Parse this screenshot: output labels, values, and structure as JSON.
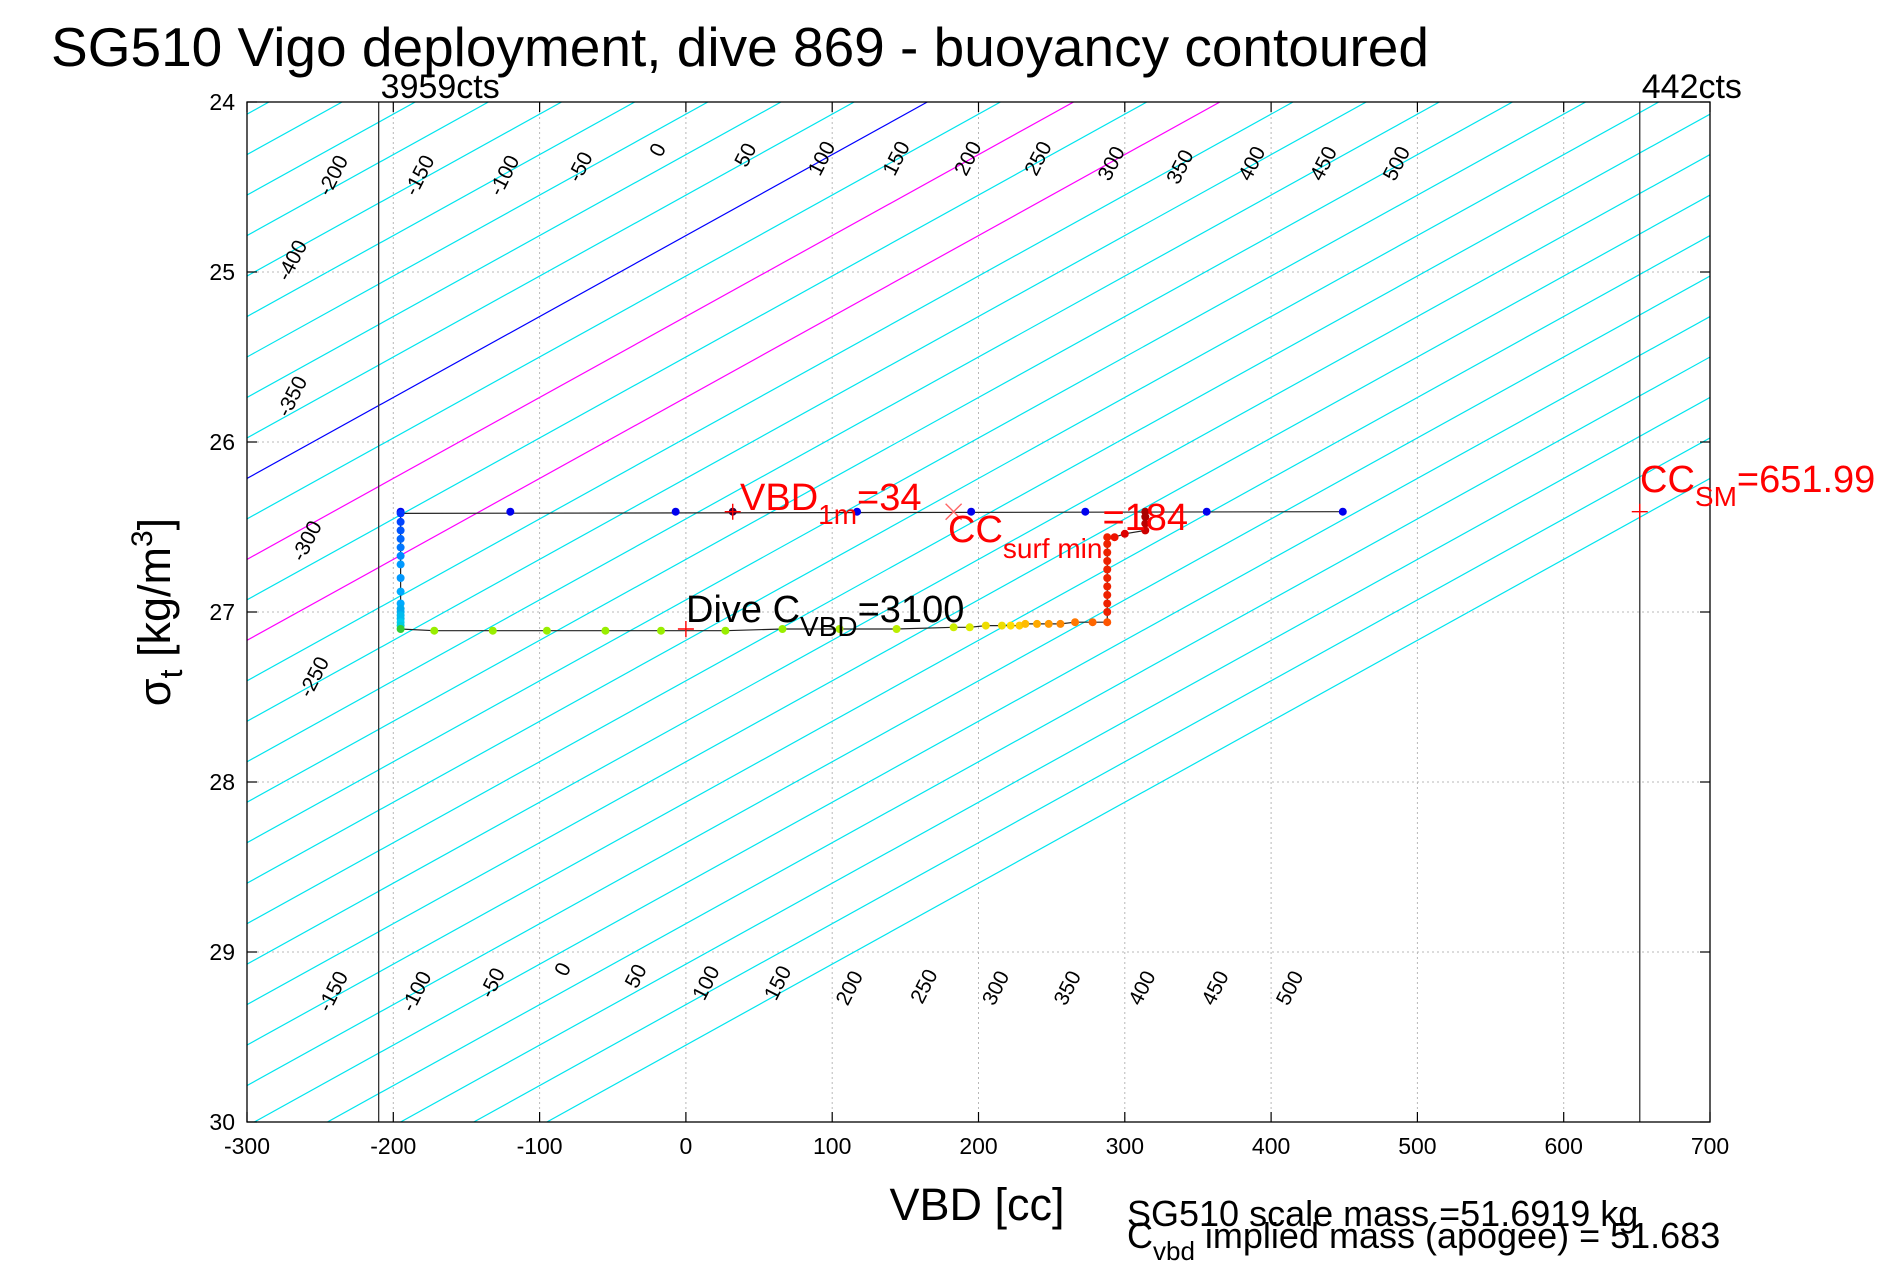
{
  "chart_data": {
    "type": "scatter",
    "title": "SG510 Vigo deployment, dive 869 - buoyancy contoured",
    "xlabel": "VBD [cc]",
    "ylabel": {
      "main": "σ",
      "sub": "t",
      "rest": " [kg/m",
      "sup": "3",
      "close": "]"
    },
    "xlim": [
      -300,
      700
    ],
    "ylim": [
      24,
      30
    ],
    "y_reversed": true,
    "grid": true,
    "x_ticks": [
      -300,
      -200,
      -100,
      0,
      100,
      200,
      300,
      400,
      500,
      600,
      700
    ],
    "x_tick_labels": [
      "-300",
      "-200",
      "-100",
      "0",
      "100",
      "200",
      "300",
      "400",
      "500",
      "600",
      "700"
    ],
    "y_ticks": [
      24,
      25,
      26,
      27,
      28,
      29,
      30
    ],
    "y_tick_labels": [
      "24",
      "25",
      "26",
      "27",
      "28",
      "29",
      "30"
    ],
    "contours": {
      "description_values": [
        -400,
        -350,
        -300,
        -250,
        -200,
        -150,
        -100,
        -50,
        0,
        50,
        100,
        150,
        200,
        250,
        300,
        350,
        400,
        450,
        500
      ],
      "slope_cc_per_sigma": 210,
      "zero_line_x_at_sigma_24": 165,
      "extra_values": [
        -650,
        -600,
        -550,
        -500,
        -450,
        550,
        600,
        650,
        700,
        750,
        800,
        850,
        900,
        950,
        1000
      ],
      "cyan_color": "#00e5ee",
      "zero_color": "#0000ff",
      "magenta_color": "#ff00ff",
      "magenta_values": [
        100,
        200
      ],
      "top_labels": [
        {
          "text": "-400",
          "x": -265,
          "y": 24.95
        },
        {
          "text": "-350",
          "x": -265,
          "y": 25.75
        },
        {
          "text": "-300",
          "x": -255,
          "y": 26.6
        },
        {
          "text": "-250",
          "x": -250,
          "y": 27.4
        },
        {
          "text": "-200",
          "x": -237,
          "y": 24.45
        },
        {
          "text": "-150",
          "x": -178,
          "y": 24.45
        },
        {
          "text": "-100",
          "x": -120,
          "y": 24.45
        },
        {
          "text": "-50",
          "x": -68,
          "y": 24.4
        },
        {
          "text": "0",
          "x": -15,
          "y": 24.3
        },
        {
          "text": "50",
          "x": 45,
          "y": 24.33
        },
        {
          "text": "100",
          "x": 97,
          "y": 24.35
        },
        {
          "text": "150",
          "x": 148,
          "y": 24.35
        },
        {
          "text": "200",
          "x": 197,
          "y": 24.35
        },
        {
          "text": "250",
          "x": 245,
          "y": 24.35
        },
        {
          "text": "300",
          "x": 295,
          "y": 24.38
        },
        {
          "text": "350",
          "x": 342,
          "y": 24.4
        },
        {
          "text": "400",
          "x": 391,
          "y": 24.38
        },
        {
          "text": "450",
          "x": 440,
          "y": 24.38
        },
        {
          "text": "500",
          "x": 490,
          "y": 24.38
        }
      ],
      "bottom_labels": [
        {
          "text": "-150",
          "x": -237,
          "y": 29.25
        },
        {
          "text": "-100",
          "x": -180,
          "y": 29.25
        },
        {
          "text": "-50",
          "x": -128,
          "y": 29.2
        },
        {
          "text": "0",
          "x": -80,
          "y": 29.12
        },
        {
          "text": "50",
          "x": -30,
          "y": 29.16
        },
        {
          "text": "100",
          "x": 18,
          "y": 29.2
        },
        {
          "text": "150",
          "x": 67,
          "y": 29.2
        },
        {
          "text": "200",
          "x": 116,
          "y": 29.23
        },
        {
          "text": "250",
          "x": 167,
          "y": 29.22
        },
        {
          "text": "300",
          "x": 216,
          "y": 29.23
        },
        {
          "text": "350",
          "x": 265,
          "y": 29.23
        },
        {
          "text": "400",
          "x": 316,
          "y": 29.23
        },
        {
          "text": "450",
          "x": 366,
          "y": 29.23
        },
        {
          "text": "500",
          "x": 417,
          "y": 29.23
        }
      ]
    },
    "vertical_lines": [
      {
        "x": -210,
        "label": "3959cts"
      },
      {
        "x": 651.99,
        "label": "442cts"
      }
    ],
    "dive_path": {
      "upper_sigma": 26.41,
      "upper_points_x": [
        -195,
        -120,
        -7,
        117,
        195,
        273,
        356,
        449
      ],
      "upper_sigma_at_xmin": 26.42,
      "lower_sigma": 27.1,
      "lower_points": [
        {
          "x": -195,
          "y": 27.1,
          "color": "#33cc33"
        },
        {
          "x": -172,
          "y": 27.11,
          "color": "#99ee00"
        },
        {
          "x": -132,
          "y": 27.11,
          "color": "#99ee00"
        },
        {
          "x": -95,
          "y": 27.11,
          "color": "#99ee00"
        },
        {
          "x": -55,
          "y": 27.11,
          "color": "#99ee00"
        },
        {
          "x": -17,
          "y": 27.11,
          "color": "#99ee00"
        },
        {
          "x": 27,
          "y": 27.11,
          "color": "#99ee00"
        },
        {
          "x": 66,
          "y": 27.1,
          "color": "#99ee00"
        },
        {
          "x": 105,
          "y": 27.1,
          "color": "#aaee00"
        },
        {
          "x": 144,
          "y": 27.1,
          "color": "#bbee00"
        },
        {
          "x": 183,
          "y": 27.09,
          "color": "#ccee00"
        },
        {
          "x": 194,
          "y": 27.09,
          "color": "#ddee00"
        },
        {
          "x": 205,
          "y": 27.08,
          "color": "#eedd00"
        },
        {
          "x": 216,
          "y": 27.08,
          "color": "#eedd00"
        },
        {
          "x": 222,
          "y": 27.08,
          "color": "#ffdd00"
        },
        {
          "x": 228,
          "y": 27.08,
          "color": "#ffcc00"
        },
        {
          "x": 232,
          "y": 27.07,
          "color": "#ffbb00"
        },
        {
          "x": 240,
          "y": 27.07,
          "color": "#ffaa00"
        },
        {
          "x": 248,
          "y": 27.07,
          "color": "#ff9900"
        },
        {
          "x": 256,
          "y": 27.07,
          "color": "#ff8800"
        },
        {
          "x": 266,
          "y": 27.06,
          "color": "#ff7700"
        },
        {
          "x": 278,
          "y": 27.06,
          "color": "#ff6600"
        },
        {
          "x": 288,
          "y": 27.06,
          "color": "#ff5500"
        }
      ],
      "right_column_x": 288,
      "right_column_sigma": [
        27.0,
        26.95,
        26.9,
        26.85,
        26.8,
        26.75,
        26.7,
        26.65,
        26.6,
        26.56
      ],
      "right_column_color": "#ee2200",
      "top_right_points": [
        {
          "x": 293,
          "y": 26.56,
          "color": "#ee1100"
        },
        {
          "x": 300,
          "y": 26.54,
          "color": "#dd0000"
        },
        {
          "x": 314,
          "y": 26.52,
          "color": "#cc0000"
        },
        {
          "x": 314,
          "y": 26.48,
          "color": "#bb0000"
        },
        {
          "x": 314,
          "y": 26.44,
          "color": "#aa0000"
        },
        {
          "x": 314,
          "y": 26.41,
          "color": "#aa0000"
        }
      ],
      "left_column_x": -195,
      "left_column_sigma": [
        26.42,
        26.47,
        26.52,
        26.57,
        26.62,
        26.67,
        26.72,
        26.8,
        26.88,
        26.95,
        26.98,
        27.0,
        27.02,
        27.04,
        27.06,
        27.08
      ],
      "left_column_colors": [
        "#0033ff",
        "#0044ff",
        "#0055ff",
        "#0066ff",
        "#0077ff",
        "#0088ff",
        "#0099ff",
        "#0099ff",
        "#00aaff",
        "#00aaff",
        "#00aaee",
        "#00aaee",
        "#00bbee",
        "#00bbee",
        "#00ccee",
        "#00ccdd"
      ],
      "upper_point_color": "#0000ee",
      "black_dot": {
        "x": 32,
        "y": 26.41
      }
    },
    "markers": [
      {
        "x": 32,
        "y": 26.41,
        "symbol": "+",
        "color": "#ff0000"
      },
      {
        "x": 183,
        "y": 26.41,
        "symbol": "x",
        "color": "#ff6666"
      },
      {
        "x": 651.99,
        "y": 26.41,
        "symbol": "+",
        "color": "#ff0000"
      },
      {
        "x": 0,
        "y": 27.1,
        "symbol": "+",
        "color": "#ff0000"
      }
    ],
    "annotations": {
      "vbd1m": {
        "main": "VBD",
        "sub": "1m",
        "rest": "=34"
      },
      "ccsurf": {
        "main": "CC",
        "sub": "surf min",
        "rest": "=184"
      },
      "ccsm": {
        "main": "CC",
        "sub": "SM",
        "rest": "=651.99"
      },
      "divec": {
        "main": "Dive C",
        "sub": "VBD",
        "rest": "=3100"
      }
    },
    "footer": {
      "line1": "SG510 scale mass =51.6919 kg",
      "line2_main": "C",
      "line2_sub": "vbd",
      "line2_rest": " implied mass (apogee) = 51.683"
    }
  }
}
